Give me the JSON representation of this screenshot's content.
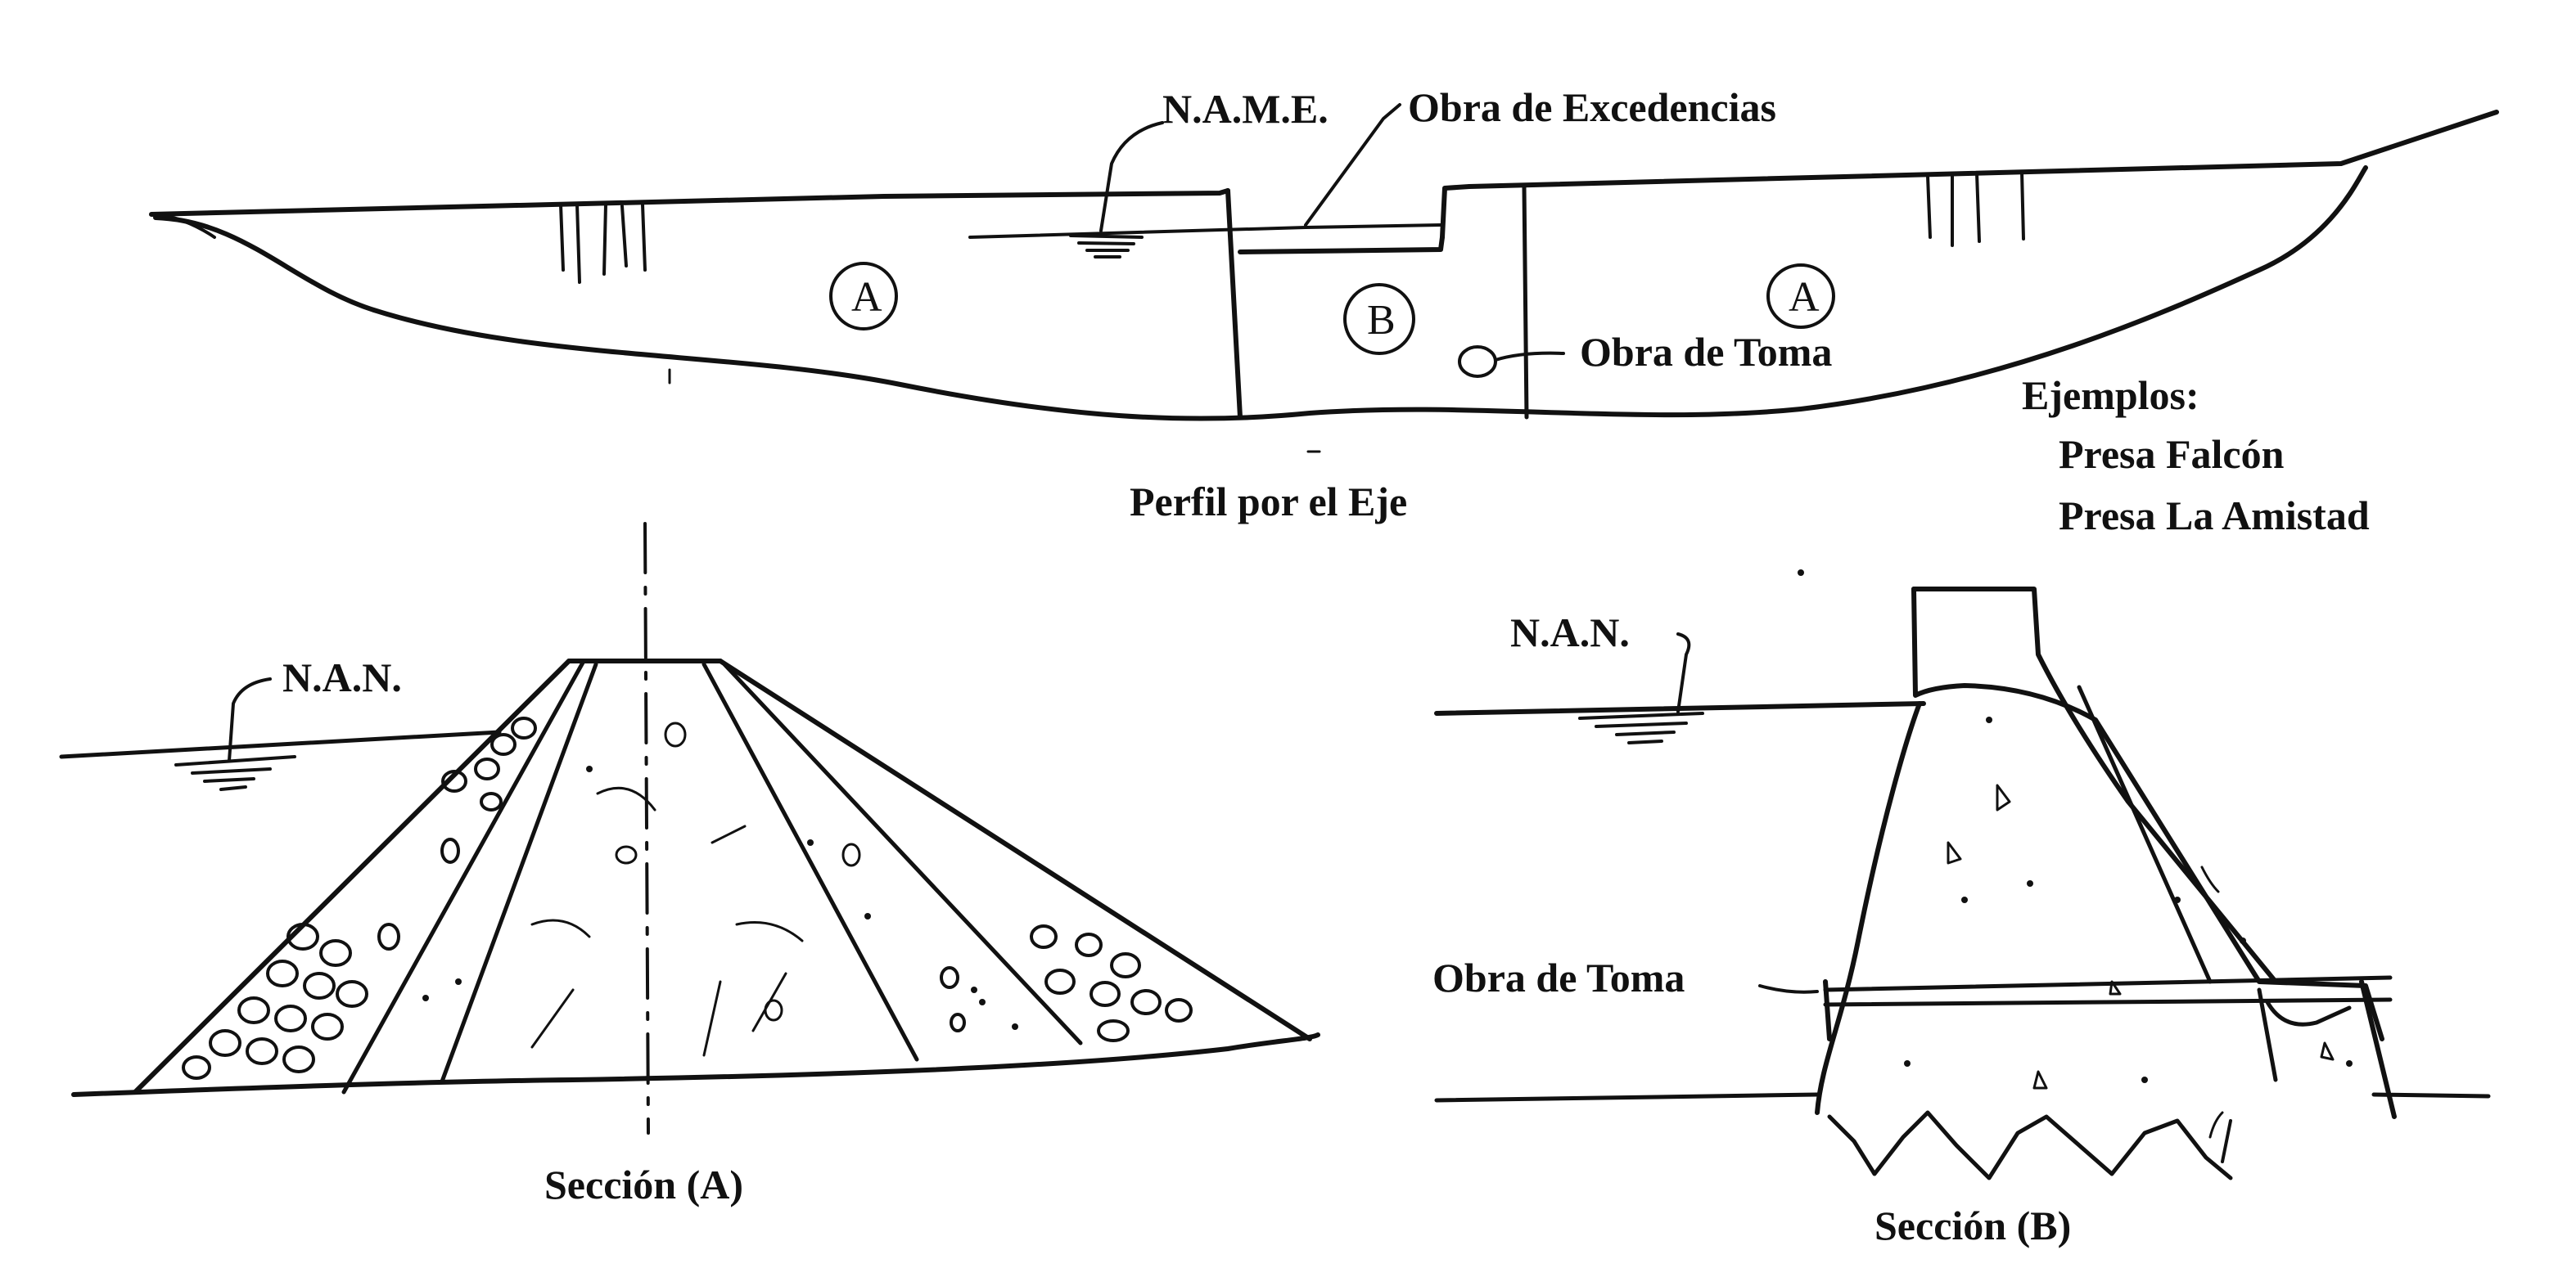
{
  "colors": {
    "ink": "#111111",
    "paper": "#ffffff"
  },
  "profile": {
    "name_label": "N.A.M.E.",
    "spillway_label": "Obra de Excedencias",
    "intake_label": "Obra de Toma",
    "zone_a_left": "A",
    "zone_b": "B",
    "zone_a_right": "A",
    "caption": "Perfil por el Eje"
  },
  "examples": {
    "heading": "Ejemplos:",
    "items": [
      "Presa Falcón",
      "Presa La Amistad"
    ]
  },
  "section_a": {
    "nan_label": "N.A.N.",
    "caption": "Sección (A)"
  },
  "section_b": {
    "nan_label": "N.A.N.",
    "intake_label": "Obra de Toma",
    "caption": "Sección (B)"
  }
}
